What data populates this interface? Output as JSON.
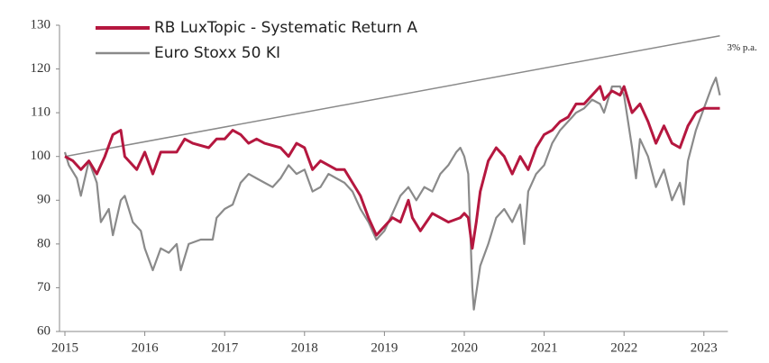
{
  "chart_data": {
    "type": "line",
    "series": [
      {
        "name": "RB LuxTopic - Systematic Return A",
        "color": "#b5173f",
        "x": [
          2015.0,
          2015.1,
          2015.2,
          2015.3,
          2015.4,
          2015.5,
          2015.6,
          2015.7,
          2015.75,
          2015.9,
          2016.0,
          2016.1,
          2016.2,
          2016.4,
          2016.5,
          2016.6,
          2016.8,
          2016.9,
          2017.0,
          2017.1,
          2017.2,
          2017.3,
          2017.4,
          2017.5,
          2017.7,
          2017.8,
          2017.9,
          2018.0,
          2018.1,
          2018.2,
          2018.4,
          2018.5,
          2018.6,
          2018.7,
          2018.8,
          2018.9,
          2019.0,
          2019.1,
          2019.2,
          2019.3,
          2019.35,
          2019.45,
          2019.6,
          2019.7,
          2019.8,
          2019.95,
          2020.0,
          2020.05,
          2020.1,
          2020.15,
          2020.2,
          2020.3,
          2020.4,
          2020.5,
          2020.6,
          2020.7,
          2020.8,
          2020.9,
          2021.0,
          2021.1,
          2021.2,
          2021.3,
          2021.4,
          2021.5,
          2021.6,
          2021.7,
          2021.75,
          2021.85,
          2021.95,
          2022.0,
          2022.1,
          2022.2,
          2022.3,
          2022.4,
          2022.5,
          2022.6,
          2022.7,
          2022.8,
          2022.9,
          2023.0,
          2023.1,
          2023.2
        ],
        "values": [
          100,
          99,
          97,
          99,
          96,
          100,
          105,
          106,
          100,
          97,
          101,
          96,
          101,
          101,
          104,
          103,
          102,
          104,
          104,
          106,
          105,
          103,
          104,
          103,
          102,
          100,
          103,
          102,
          97,
          99,
          97,
          97,
          94,
          91,
          86,
          82,
          84,
          86,
          85,
          90,
          86,
          83,
          87,
          86,
          85,
          86,
          87,
          86,
          79,
          85,
          92,
          99,
          102,
          100,
          96,
          100,
          97,
          102,
          105,
          106,
          108,
          109,
          112,
          112,
          114,
          116,
          113,
          115,
          114,
          116,
          110,
          112,
          108,
          103,
          107,
          103,
          102,
          107,
          110,
          111,
          111,
          111
        ]
      },
      {
        "name": "Euro Stoxx 50 KI",
        "color": "#8a8a8a",
        "x": [
          2015.0,
          2015.05,
          2015.15,
          2015.2,
          2015.3,
          2015.4,
          2015.45,
          2015.55,
          2015.6,
          2015.7,
          2015.75,
          2015.85,
          2015.95,
          2016.0,
          2016.1,
          2016.2,
          2016.3,
          2016.4,
          2016.45,
          2016.55,
          2016.7,
          2016.85,
          2016.9,
          2017.0,
          2017.1,
          2017.2,
          2017.3,
          2017.4,
          2017.5,
          2017.6,
          2017.7,
          2017.8,
          2017.9,
          2018.0,
          2018.1,
          2018.2,
          2018.3,
          2018.4,
          2018.5,
          2018.6,
          2018.7,
          2018.8,
          2018.9,
          2019.0,
          2019.1,
          2019.2,
          2019.3,
          2019.4,
          2019.5,
          2019.6,
          2019.7,
          2019.8,
          2019.9,
          2019.95,
          2020.0,
          2020.05,
          2020.1,
          2020.12,
          2020.2,
          2020.3,
          2020.4,
          2020.5,
          2020.6,
          2020.7,
          2020.75,
          2020.8,
          2020.9,
          2021.0,
          2021.1,
          2021.2,
          2021.3,
          2021.4,
          2021.5,
          2021.6,
          2021.7,
          2021.75,
          2021.85,
          2021.95,
          2022.0,
          2022.1,
          2022.15,
          2022.2,
          2022.3,
          2022.4,
          2022.5,
          2022.6,
          2022.7,
          2022.75,
          2022.8,
          2022.9,
          2023.0,
          2023.1,
          2023.15,
          2023.2
        ],
        "values": [
          101,
          98,
          95,
          91,
          99,
          94,
          85,
          88,
          82,
          90,
          91,
          85,
          83,
          79,
          74,
          79,
          78,
          80,
          74,
          80,
          81,
          81,
          86,
          88,
          89,
          94,
          96,
          95,
          94,
          93,
          95,
          98,
          96,
          97,
          92,
          93,
          96,
          95,
          94,
          92,
          88,
          85,
          81,
          83,
          87,
          91,
          93,
          90,
          93,
          92,
          96,
          98,
          101,
          102,
          100,
          96,
          70,
          65,
          75,
          80,
          86,
          88,
          85,
          89,
          80,
          92,
          96,
          98,
          103,
          106,
          108,
          110,
          111,
          113,
          112,
          110,
          116,
          116,
          114,
          102,
          95,
          104,
          100,
          93,
          97,
          90,
          94,
          89,
          99,
          106,
          111,
          116,
          118,
          114
        ]
      }
    ],
    "annotation_line": {
      "label": "3% p.a.",
      "color": "#8a8a8a",
      "x": [
        2015.0,
        2023.2
      ],
      "values": [
        100,
        127.6
      ]
    },
    "xlim": [
      2015,
      2023.3
    ],
    "xticks": [
      2015,
      2016,
      2017,
      2018,
      2019,
      2020,
      2021,
      2022,
      2023
    ],
    "ylim": [
      60,
      130
    ],
    "yticks": [
      60,
      70,
      80,
      90,
      100,
      110,
      120,
      130
    ],
    "legend": "upper-left"
  }
}
